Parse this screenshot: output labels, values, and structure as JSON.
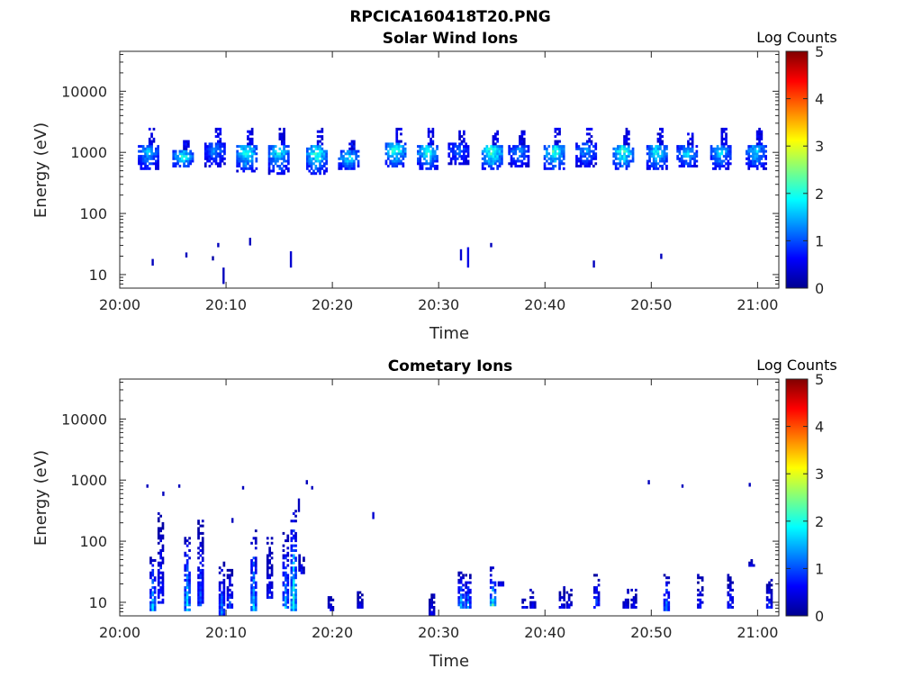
{
  "figure_title": "RPCICA160418T20.PNG",
  "chart_data": [
    {
      "type": "heatmap",
      "title": "Solar Wind Ions",
      "xlabel": "Time",
      "ylabel": "Energy (eV)",
      "xlim": [
        "20:00",
        "21:02"
      ],
      "ylim": [
        6,
        45000
      ],
      "yscale": "log",
      "xticks": [
        "20:00",
        "20:10",
        "20:20",
        "20:30",
        "20:40",
        "20:50",
        "21:00"
      ],
      "yticks": [
        "10",
        "100",
        "1000",
        "10000"
      ],
      "colorbar": {
        "label": "Log Counts",
        "range": [
          0,
          5
        ],
        "ticks": [
          "0",
          "1",
          "2",
          "3",
          "4",
          "5"
        ],
        "colormap": "jet"
      },
      "clusters": [
        {
          "t": "20:02:30",
          "emin": 500,
          "emax": 2500,
          "peak": 1.3
        },
        {
          "t": "20:05:45",
          "emin": 550,
          "emax": 1600,
          "peak": 1.7
        },
        {
          "t": "20:08:45",
          "emin": 550,
          "emax": 2500,
          "peak": 1.1
        },
        {
          "t": "20:11:45",
          "emin": 480,
          "emax": 2500,
          "peak": 1.7
        },
        {
          "t": "20:14:45",
          "emin": 450,
          "emax": 2500,
          "peak": 1.6
        },
        {
          "t": "20:18:20",
          "emin": 450,
          "emax": 2500,
          "peak": 1.8
        },
        {
          "t": "20:21:20",
          "emin": 500,
          "emax": 1600,
          "peak": 1.5
        },
        {
          "t": "20:25:45",
          "emin": 550,
          "emax": 2500,
          "peak": 1.8
        },
        {
          "t": "20:28:45",
          "emin": 500,
          "emax": 2500,
          "peak": 1.7
        },
        {
          "t": "20:31:40",
          "emin": 600,
          "emax": 2300,
          "peak": 1.0
        },
        {
          "t": "20:34:50",
          "emin": 500,
          "emax": 2500,
          "peak": 1.9
        },
        {
          "t": "20:37:20",
          "emin": 550,
          "emax": 2300,
          "peak": 1.2
        },
        {
          "t": "20:40:40",
          "emin": 500,
          "emax": 2500,
          "peak": 1.8
        },
        {
          "t": "20:43:40",
          "emin": 550,
          "emax": 2500,
          "peak": 1.2
        },
        {
          "t": "20:47:10",
          "emin": 500,
          "emax": 2500,
          "peak": 1.8
        },
        {
          "t": "20:50:20",
          "emin": 500,
          "emax": 2500,
          "peak": 1.6
        },
        {
          "t": "20:53:10",
          "emin": 550,
          "emax": 2000,
          "peak": 1.4
        },
        {
          "t": "20:56:20",
          "emin": 500,
          "emax": 2500,
          "peak": 1.4
        },
        {
          "t": "20:59:40",
          "emin": 500,
          "emax": 2500,
          "peak": 1.4
        }
      ],
      "spots": [
        {
          "t": "20:03:00",
          "emin": 14,
          "emax": 18,
          "v": 0.3
        },
        {
          "t": "20:06:10",
          "emin": 19,
          "emax": 23,
          "v": 0.3
        },
        {
          "t": "20:08:40",
          "emin": 17,
          "emax": 20,
          "v": 0.2
        },
        {
          "t": "20:09:10",
          "emin": 28,
          "emax": 33,
          "v": 0.3
        },
        {
          "t": "20:09:40",
          "emin": 7,
          "emax": 13,
          "v": 0.3
        },
        {
          "t": "20:12:10",
          "emin": 30,
          "emax": 40,
          "v": 0.3
        },
        {
          "t": "20:16:00",
          "emin": 13,
          "emax": 24,
          "v": 0.4
        },
        {
          "t": "20:32:00",
          "emin": 17,
          "emax": 26,
          "v": 0.4
        },
        {
          "t": "20:32:40",
          "emin": 13,
          "emax": 28,
          "v": 0.5
        },
        {
          "t": "20:34:50",
          "emin": 28,
          "emax": 33,
          "v": 0.3
        },
        {
          "t": "20:44:30",
          "emin": 13,
          "emax": 17,
          "v": 0.3
        },
        {
          "t": "20:50:50",
          "emin": 18,
          "emax": 22,
          "v": 0.3
        }
      ]
    },
    {
      "type": "heatmap",
      "title": "Cometary Ions",
      "xlabel": "Time",
      "ylabel": "Energy (eV)",
      "xlim": [
        "20:00",
        "21:02"
      ],
      "ylim": [
        6,
        45000
      ],
      "yscale": "log",
      "xticks": [
        "20:00",
        "20:10",
        "20:20",
        "20:30",
        "20:40",
        "20:50",
        "21:00"
      ],
      "yticks": [
        "10",
        "100",
        "1000",
        "10000"
      ],
      "colorbar": {
        "label": "Log Counts",
        "range": [
          0,
          5
        ],
        "ticks": [
          "0",
          "1",
          "2",
          "3",
          "4",
          "5"
        ],
        "colormap": "jet"
      },
      "columns": [
        {
          "t": "20:03:00",
          "emin": 7,
          "emax": 60,
          "peak": 1.6
        },
        {
          "t": "20:03:45",
          "emin": 10,
          "emax": 300,
          "peak": 0.9
        },
        {
          "t": "20:06:15",
          "emin": 7,
          "emax": 120,
          "peak": 1.7
        },
        {
          "t": "20:07:30",
          "emin": 9,
          "emax": 250,
          "peak": 1.0
        },
        {
          "t": "20:09:30",
          "emin": 6,
          "emax": 45,
          "peak": 1.3
        },
        {
          "t": "20:10:15",
          "emin": 8,
          "emax": 40,
          "peak": 0.9
        },
        {
          "t": "20:12:30",
          "emin": 7,
          "emax": 150,
          "peak": 1.6
        },
        {
          "t": "20:14:00",
          "emin": 12,
          "emax": 120,
          "peak": 0.7
        },
        {
          "t": "20:15:30",
          "emin": 8,
          "emax": 150,
          "peak": 1.4
        },
        {
          "t": "20:16:15",
          "emin": 7,
          "emax": 350,
          "peak": 2.0
        },
        {
          "t": "20:17:00",
          "emin": 30,
          "emax": 60,
          "peak": 0.6
        },
        {
          "t": "20:19:45",
          "emin": 7,
          "emax": 14,
          "peak": 0.6
        },
        {
          "t": "20:22:30",
          "emin": 8,
          "emax": 16,
          "peak": 0.6
        },
        {
          "t": "20:29:15",
          "emin": 6,
          "emax": 14,
          "peak": 0.6
        },
        {
          "t": "20:32:00",
          "emin": 8,
          "emax": 32,
          "peak": 1.5
        },
        {
          "t": "20:32:40",
          "emin": 8,
          "emax": 30,
          "peak": 1.3
        },
        {
          "t": "20:35:00",
          "emin": 9,
          "emax": 38,
          "peak": 2.0
        },
        {
          "t": "20:35:45",
          "emin": 18,
          "emax": 24,
          "peak": 0.8
        },
        {
          "t": "20:38:00",
          "emin": 8,
          "emax": 12,
          "peak": 0.6
        },
        {
          "t": "20:38:45",
          "emin": 8,
          "emax": 16,
          "peak": 0.6
        },
        {
          "t": "20:41:30",
          "emin": 8,
          "emax": 20,
          "peak": 0.6
        },
        {
          "t": "20:42:10",
          "emin": 8,
          "emax": 16,
          "peak": 0.6
        },
        {
          "t": "20:44:45",
          "emin": 8,
          "emax": 30,
          "peak": 1.0
        },
        {
          "t": "20:47:30",
          "emin": 8,
          "emax": 16,
          "peak": 0.6
        },
        {
          "t": "20:48:15",
          "emin": 8,
          "emax": 16,
          "peak": 0.6
        },
        {
          "t": "20:51:20",
          "emin": 7,
          "emax": 30,
          "peak": 1.3
        },
        {
          "t": "20:54:30",
          "emin": 8,
          "emax": 28,
          "peak": 0.7
        },
        {
          "t": "20:57:20",
          "emin": 8,
          "emax": 28,
          "peak": 0.8
        },
        {
          "t": "20:59:20",
          "emin": 38,
          "emax": 50,
          "peak": 0.6
        },
        {
          "t": "21:01:00",
          "emin": 8,
          "emax": 24,
          "peak": 0.8
        }
      ],
      "spots": [
        {
          "t": "20:02:30",
          "emin": 750,
          "emax": 850,
          "v": 0.3
        },
        {
          "t": "20:04:00",
          "emin": 550,
          "emax": 650,
          "v": 0.3
        },
        {
          "t": "20:05:30",
          "emin": 750,
          "emax": 850,
          "v": 0.3
        },
        {
          "t": "20:11:30",
          "emin": 700,
          "emax": 800,
          "v": 0.3
        },
        {
          "t": "20:17:30",
          "emin": 850,
          "emax": 1000,
          "v": 0.3
        },
        {
          "t": "20:18:00",
          "emin": 700,
          "emax": 800,
          "v": 0.3
        },
        {
          "t": "20:16:45",
          "emin": 300,
          "emax": 500,
          "v": 0.3
        },
        {
          "t": "20:10:30",
          "emin": 200,
          "emax": 240,
          "v": 0.3
        },
        {
          "t": "20:23:45",
          "emin": 230,
          "emax": 300,
          "v": 0.4
        },
        {
          "t": "20:49:40",
          "emin": 850,
          "emax": 1000,
          "v": 0.3
        },
        {
          "t": "20:52:50",
          "emin": 750,
          "emax": 850,
          "v": 0.3
        },
        {
          "t": "20:59:10",
          "emin": 780,
          "emax": 900,
          "v": 0.3
        }
      ]
    }
  ]
}
